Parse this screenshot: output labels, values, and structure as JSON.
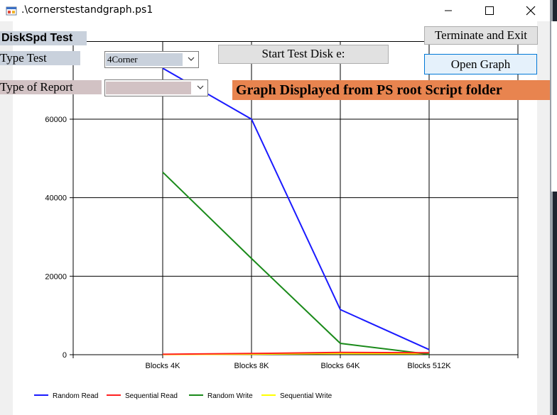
{
  "window": {
    "title": ".\\cornerstestandgraph.ps1"
  },
  "form": {
    "heading": "DiskSpd Test",
    "type_test_label": "Type Test",
    "type_test_value": "4Corner",
    "type_report_label": "Type of Report",
    "type_report_value": "",
    "start_button": "Start Test Disk e:",
    "terminate_button": "Terminate and Exit",
    "open_graph_button": "Open Graph",
    "banner": "Graph Displayed from PS root Script folder"
  },
  "colors": {
    "banner": "#e8844f",
    "heading_bg": "#c9d1dc",
    "type_test_bg": "#c9d1dc",
    "report_label_bg": "#d2c2c4",
    "open_graph_border": "#0078d7",
    "open_graph_bg": "#e5f1fb"
  },
  "chart_data": {
    "type": "line",
    "categories": [
      "Blocks 4K",
      "Blocks 8K",
      "Blocks 64K",
      "Blocks 512K"
    ],
    "ylim": [
      0,
      75000
    ],
    "yticks": [
      0,
      20000,
      40000,
      60000
    ],
    "grid": true,
    "legend_position": "bottom-left",
    "series": [
      {
        "name": "Random Read",
        "color": "#1a1aff",
        "values": [
          73000,
          60000,
          11500,
          1300
        ]
      },
      {
        "name": "Sequential Read",
        "color": "#ff2020",
        "values": [
          100,
          300,
          600,
          500
        ]
      },
      {
        "name": "Random Write",
        "color": "#1a8a1a",
        "values": [
          46500,
          24500,
          2900,
          100
        ]
      },
      {
        "name": "Sequential Write",
        "color": "#ffff00",
        "values": [
          50,
          150,
          300,
          250
        ]
      }
    ]
  }
}
